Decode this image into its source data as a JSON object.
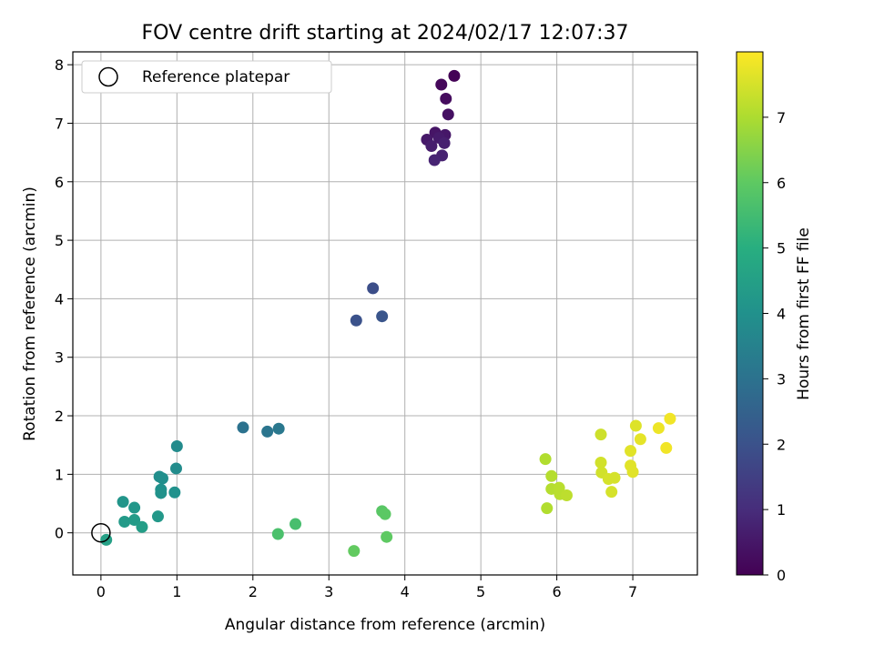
{
  "chart_data": {
    "type": "scatter",
    "title": "FOV centre drift starting at 2024/02/17 12:07:37",
    "xlabel": "Angular distance from reference (arcmin)",
    "ylabel": "Rotation from reference (arcmin)",
    "xlim": [
      -0.37,
      7.85
    ],
    "ylim": [
      -0.72,
      8.22
    ],
    "xticks": [
      "0",
      "1",
      "2",
      "3",
      "4",
      "5",
      "6",
      "7"
    ],
    "yticks": [
      "0",
      "1",
      "2",
      "3",
      "4",
      "5",
      "6",
      "7",
      "8"
    ],
    "grid": true,
    "legend": {
      "placement": "top-left",
      "entries": [
        "Reference platepar"
      ]
    },
    "reference_point": {
      "x": 0,
      "y": 0
    },
    "colorbar": {
      "label": "Hours from first FF file",
      "range": [
        0,
        8.0
      ],
      "ticks": [
        "0",
        "1",
        "2",
        "3",
        "4",
        "5",
        "6",
        "7"
      ],
      "colormap": "viridis"
    },
    "points": [
      {
        "x": 4.65,
        "y": 7.81,
        "h": 0.05
      },
      {
        "x": 4.48,
        "y": 7.66,
        "h": 0.15
      },
      {
        "x": 4.54,
        "y": 7.42,
        "h": 0.25
      },
      {
        "x": 4.57,
        "y": 7.15,
        "h": 0.35
      },
      {
        "x": 4.4,
        "y": 6.84,
        "h": 0.45
      },
      {
        "x": 4.53,
        "y": 6.8,
        "h": 0.5
      },
      {
        "x": 4.29,
        "y": 6.72,
        "h": 0.55
      },
      {
        "x": 4.45,
        "y": 6.75,
        "h": 0.6
      },
      {
        "x": 4.35,
        "y": 6.61,
        "h": 0.65
      },
      {
        "x": 4.52,
        "y": 6.66,
        "h": 0.7
      },
      {
        "x": 4.49,
        "y": 6.45,
        "h": 0.75
      },
      {
        "x": 4.39,
        "y": 6.37,
        "h": 0.8
      },
      {
        "x": 3.58,
        "y": 4.18,
        "h": 1.9
      },
      {
        "x": 3.36,
        "y": 3.63,
        "h": 2.0
      },
      {
        "x": 3.7,
        "y": 3.7,
        "h": 2.1
      },
      {
        "x": 1.87,
        "y": 1.8,
        "h": 3.0
      },
      {
        "x": 2.19,
        "y": 1.73,
        "h": 3.1
      },
      {
        "x": 2.34,
        "y": 1.78,
        "h": 3.2
      },
      {
        "x": 1.0,
        "y": 1.48,
        "h": 3.8
      },
      {
        "x": 0.99,
        "y": 1.1,
        "h": 3.85
      },
      {
        "x": 0.77,
        "y": 0.96,
        "h": 3.9
      },
      {
        "x": 0.81,
        "y": 0.93,
        "h": 3.95
      },
      {
        "x": 0.79,
        "y": 0.74,
        "h": 4.0
      },
      {
        "x": 0.97,
        "y": 0.69,
        "h": 4.0
      },
      {
        "x": 0.79,
        "y": 0.68,
        "h": 4.05
      },
      {
        "x": 0.29,
        "y": 0.53,
        "h": 4.15
      },
      {
        "x": 0.44,
        "y": 0.43,
        "h": 4.2
      },
      {
        "x": 0.75,
        "y": 0.28,
        "h": 4.25
      },
      {
        "x": 0.31,
        "y": 0.19,
        "h": 4.3
      },
      {
        "x": 0.44,
        "y": 0.22,
        "h": 4.35
      },
      {
        "x": 0.54,
        "y": 0.1,
        "h": 4.4
      },
      {
        "x": 0.07,
        "y": -0.12,
        "h": 4.5
      },
      {
        "x": 2.56,
        "y": 0.15,
        "h": 5.6
      },
      {
        "x": 2.33,
        "y": -0.02,
        "h": 5.65
      },
      {
        "x": 3.7,
        "y": 0.37,
        "h": 5.9
      },
      {
        "x": 3.74,
        "y": 0.32,
        "h": 5.95
      },
      {
        "x": 3.76,
        "y": -0.07,
        "h": 6.0
      },
      {
        "x": 3.33,
        "y": -0.31,
        "h": 6.05
      },
      {
        "x": 5.85,
        "y": 1.26,
        "h": 7.05
      },
      {
        "x": 5.93,
        "y": 0.97,
        "h": 7.1
      },
      {
        "x": 5.93,
        "y": 0.75,
        "h": 7.1
      },
      {
        "x": 6.03,
        "y": 0.77,
        "h": 7.15
      },
      {
        "x": 6.04,
        "y": 0.66,
        "h": 7.15
      },
      {
        "x": 6.13,
        "y": 0.64,
        "h": 7.2
      },
      {
        "x": 5.87,
        "y": 0.42,
        "h": 7.05
      },
      {
        "x": 6.58,
        "y": 1.68,
        "h": 7.4
      },
      {
        "x": 6.58,
        "y": 1.2,
        "h": 7.45
      },
      {
        "x": 6.59,
        "y": 1.03,
        "h": 7.45
      },
      {
        "x": 6.68,
        "y": 0.92,
        "h": 7.5
      },
      {
        "x": 6.76,
        "y": 0.94,
        "h": 7.5
      },
      {
        "x": 6.72,
        "y": 0.7,
        "h": 7.5
      },
      {
        "x": 7.04,
        "y": 1.83,
        "h": 7.6
      },
      {
        "x": 6.97,
        "y": 1.4,
        "h": 7.65
      },
      {
        "x": 6.97,
        "y": 1.15,
        "h": 7.65
      },
      {
        "x": 7.0,
        "y": 1.04,
        "h": 7.65
      },
      {
        "x": 7.1,
        "y": 1.6,
        "h": 7.7
      },
      {
        "x": 7.34,
        "y": 1.79,
        "h": 7.8
      },
      {
        "x": 7.49,
        "y": 1.95,
        "h": 7.85
      },
      {
        "x": 7.44,
        "y": 1.45,
        "h": 7.85
      }
    ]
  }
}
